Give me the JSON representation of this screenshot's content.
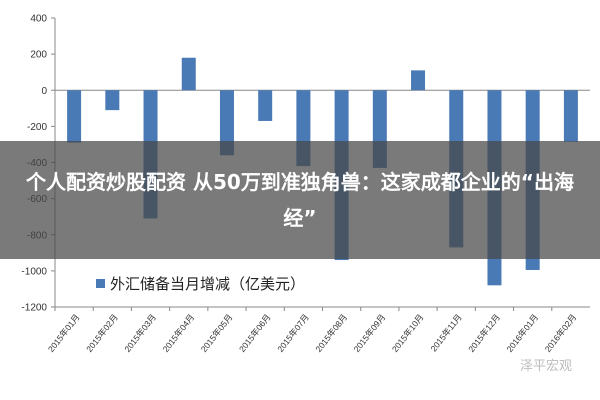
{
  "chart_data": {
    "type": "bar",
    "categories": [
      "2015年01月",
      "2015年02月",
      "2015年03月",
      "2015年04月",
      "2015年05月",
      "2015年06月",
      "2015年07月",
      "2015年08月",
      "2015年09月",
      "2015年10月",
      "2015年11月",
      "2015年12月",
      "2016年01月",
      "2016年02月"
    ],
    "series": [
      {
        "name": "外汇储备当月增减（亿美元）",
        "values": [
          -290,
          -110,
          -710,
          180,
          -360,
          -170,
          -420,
          -940,
          -430,
          110,
          -870,
          -1080,
          -995,
          -285
        ]
      }
    ],
    "ylim": [
      -1200,
      400
    ],
    "yticks": [
      400,
      200,
      0,
      -200,
      -400,
      -600,
      -800,
      -1000,
      -1200
    ],
    "ytick_labels": [
      "400",
      "200",
      "0",
      "-200",
      "-400",
      "-600",
      "-800",
      "-1000",
      "-1200"
    ],
    "legend": "bottom-left",
    "grid": false,
    "bar_color": "#4a7ab5"
  },
  "overlay": {
    "headline": "个人配资炒股配资 从50万到准独角兽：这家成都企业的“出海经”"
  },
  "watermark": {
    "text": "泽平宏观"
  }
}
